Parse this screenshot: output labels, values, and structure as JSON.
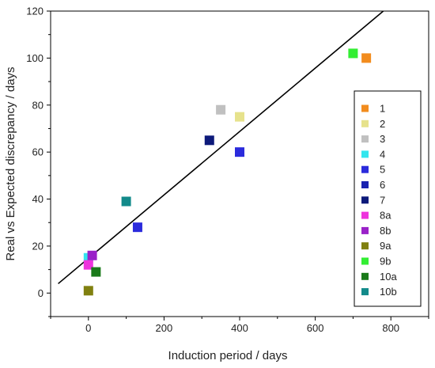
{
  "chart_data": {
    "type": "scatter",
    "title": "",
    "xlabel": "Induction period / days",
    "ylabel": "Real vs Expected discrepancy / days",
    "xlim": [
      -100,
      900
    ],
    "ylim": [
      -10,
      120
    ],
    "xticks": [
      0,
      200,
      400,
      600,
      800
    ],
    "yticks": [
      0,
      20,
      40,
      60,
      80,
      100,
      120
    ],
    "grid": false,
    "legend_position": "right",
    "series": [
      {
        "name": "1",
        "color": "#f28c1e",
        "points": [
          [
            735,
            100
          ]
        ]
      },
      {
        "name": "2",
        "color": "#e6e28c",
        "points": [
          [
            400,
            75
          ]
        ]
      },
      {
        "name": "3",
        "color": "#c0c0c0",
        "points": [
          [
            350,
            78
          ]
        ]
      },
      {
        "name": "4",
        "color": "#33e6ee",
        "points": [
          [
            0,
            15
          ]
        ]
      },
      {
        "name": "5",
        "color": "#2b2bdc",
        "points": [
          [
            130,
            28
          ],
          [
            400,
            60
          ]
        ]
      },
      {
        "name": "6",
        "color": "#1a22b0",
        "points": []
      },
      {
        "name": "7",
        "color": "#0d1a7a",
        "points": [
          [
            320,
            65
          ]
        ]
      },
      {
        "name": "8a",
        "color": "#ee33dd",
        "points": [
          [
            0,
            12
          ]
        ]
      },
      {
        "name": "8b",
        "color": "#9a22c8",
        "points": [
          [
            10,
            16
          ]
        ]
      },
      {
        "name": "9a",
        "color": "#808010",
        "points": [
          [
            0,
            1
          ]
        ]
      },
      {
        "name": "9b",
        "color": "#33ee33",
        "points": [
          [
            700,
            102
          ]
        ]
      },
      {
        "name": "10a",
        "color": "#1a7a1a",
        "points": [
          [
            20,
            9
          ]
        ]
      },
      {
        "name": "10b",
        "color": "#128a8a",
        "points": [
          [
            100,
            39
          ]
        ]
      }
    ],
    "fit_line": {
      "x": [
        -80,
        780
      ],
      "y": [
        4,
        120
      ]
    }
  }
}
